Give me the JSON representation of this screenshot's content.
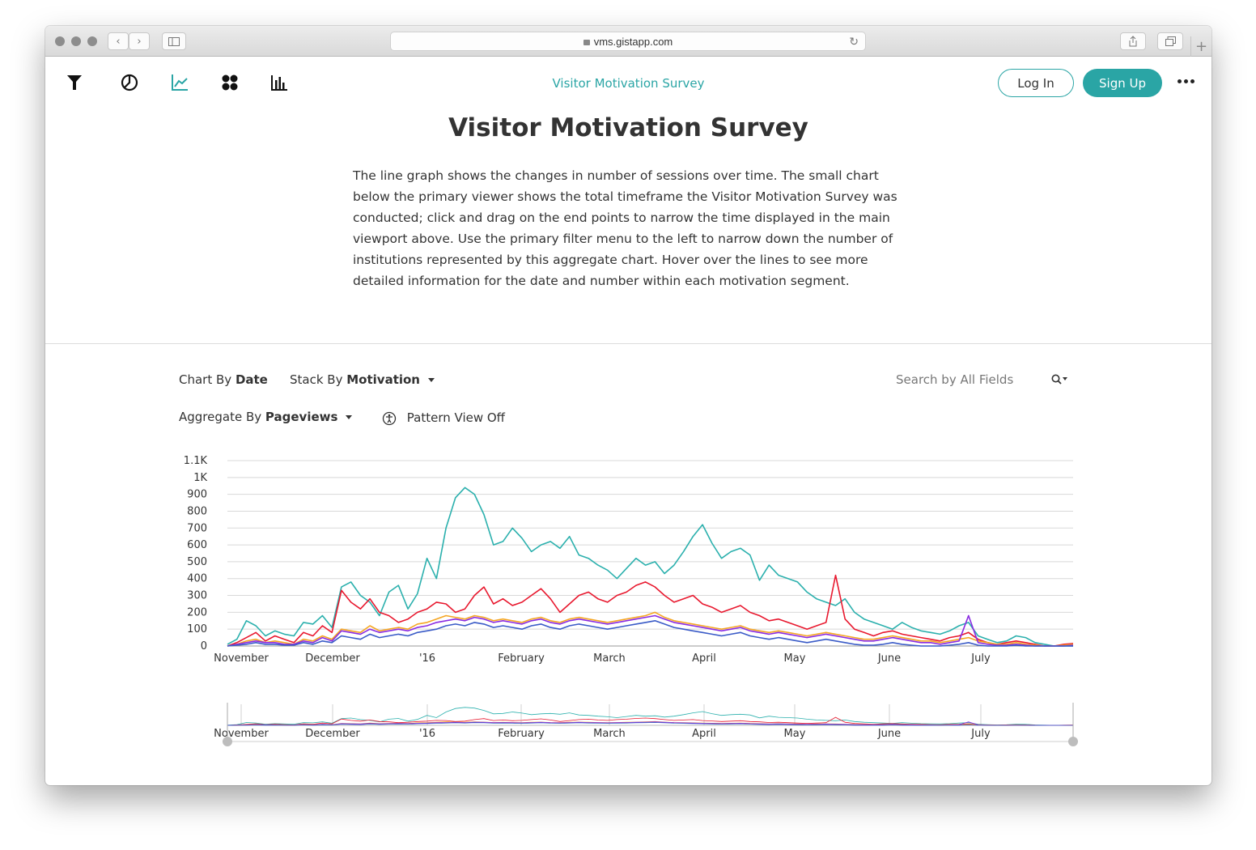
{
  "browser": {
    "url": "vms.gistapp.com"
  },
  "nav": {
    "title": "Visitor Motivation Survey",
    "login_label": "Log In",
    "signup_label": "Sign Up"
  },
  "page": {
    "heading": "Visitor Motivation Survey",
    "description": "The line graph shows the changes in number of sessions over time. The small chart below the primary viewer shows the total timeframe the Visitor Motivation Survey was conducted; click and drag on the end points to narrow the time displayed in the main viewport above. Use the primary filter menu to the left to narrow down the number of institutions represented by this aggregate chart. Hover over the lines to see more detailed information for the date and number within each motivation segment."
  },
  "controls": {
    "chart_by_label": "Chart By",
    "chart_by_value": "Date",
    "stack_by_label": "Stack By",
    "stack_by_value": "Motivation",
    "aggregate_by_label": "Aggregate By",
    "aggregate_by_value": "Pageviews",
    "pattern_view": "Pattern View Off",
    "search_placeholder": "Search by All Fields"
  },
  "colors": {
    "accent": "#2aa5a5",
    "teal": "#2bb0ad",
    "red": "#e8182e",
    "orange": "#f5a623",
    "purple": "#8a2be2",
    "blue": "#3a5bc7"
  },
  "chart_data": {
    "type": "line",
    "ylim": [
      0,
      1100
    ],
    "yticks": [
      "0",
      "100",
      "200",
      "300",
      "400",
      "500",
      "600",
      "700",
      "800",
      "900",
      "1K",
      "1.1K"
    ],
    "xticks": [
      "November",
      "December",
      "'16",
      "February",
      "March",
      "April",
      "May",
      "June",
      "July"
    ],
    "grid": true,
    "series": [
      {
        "color": "#2bb0ad",
        "values": [
          10,
          40,
          150,
          120,
          60,
          90,
          70,
          60,
          140,
          130,
          180,
          110,
          350,
          380,
          300,
          260,
          180,
          320,
          360,
          220,
          310,
          520,
          400,
          700,
          880,
          940,
          900,
          780,
          600,
          620,
          700,
          640,
          560,
          600,
          620,
          580,
          650,
          540,
          520,
          480,
          450,
          400,
          460,
          520,
          480,
          500,
          430,
          480,
          560,
          650,
          720,
          610,
          520,
          560,
          580,
          540,
          390,
          480,
          420,
          400,
          380,
          320,
          280,
          260,
          240,
          280,
          200,
          160,
          140,
          120,
          100,
          140,
          110,
          90,
          80,
          70,
          90,
          120,
          140,
          60,
          40,
          20,
          30,
          60,
          50,
          20,
          10,
          0,
          0,
          0
        ]
      },
      {
        "color": "#e8182e",
        "values": [
          0,
          20,
          50,
          80,
          30,
          60,
          40,
          20,
          80,
          60,
          120,
          80,
          330,
          260,
          220,
          280,
          200,
          180,
          140,
          160,
          200,
          220,
          260,
          250,
          200,
          220,
          300,
          350,
          250,
          280,
          240,
          260,
          300,
          340,
          280,
          200,
          250,
          300,
          320,
          280,
          260,
          300,
          320,
          360,
          380,
          350,
          300,
          260,
          280,
          300,
          250,
          230,
          200,
          220,
          240,
          200,
          180,
          150,
          160,
          140,
          120,
          100,
          120,
          140,
          420,
          160,
          100,
          80,
          60,
          80,
          90,
          70,
          60,
          50,
          40,
          30,
          50,
          60,
          80,
          40,
          20,
          10,
          20,
          30,
          20,
          10,
          0,
          0,
          10,
          15
        ]
      },
      {
        "color": "#f5a623",
        "values": [
          0,
          10,
          30,
          40,
          20,
          30,
          20,
          10,
          40,
          30,
          60,
          40,
          100,
          90,
          80,
          120,
          90,
          100,
          110,
          100,
          130,
          140,
          160,
          180,
          170,
          160,
          180,
          170,
          150,
          160,
          150,
          140,
          160,
          170,
          150,
          140,
          160,
          170,
          160,
          150,
          140,
          150,
          160,
          170,
          180,
          200,
          170,
          150,
          140,
          130,
          120,
          110,
          100,
          110,
          120,
          100,
          90,
          80,
          90,
          80,
          70,
          60,
          70,
          80,
          70,
          60,
          50,
          40,
          40,
          50,
          60,
          50,
          40,
          30,
          30,
          20,
          30,
          40,
          50,
          30,
          20,
          10,
          10,
          20,
          10,
          5,
          0,
          0,
          5,
          10
        ]
      },
      {
        "color": "#8a2be2",
        "values": [
          0,
          10,
          20,
          30,
          20,
          20,
          10,
          10,
          30,
          20,
          50,
          30,
          90,
          80,
          70,
          100,
          80,
          90,
          100,
          90,
          110,
          120,
          140,
          150,
          160,
          150,
          170,
          160,
          140,
          150,
          140,
          130,
          150,
          160,
          140,
          130,
          150,
          160,
          150,
          140,
          130,
          140,
          150,
          160,
          170,
          180,
          160,
          140,
          130,
          120,
          110,
          100,
          90,
          100,
          110,
          90,
          80,
          70,
          80,
          70,
          60,
          50,
          60,
          70,
          60,
          50,
          40,
          30,
          30,
          40,
          50,
          40,
          30,
          20,
          20,
          10,
          20,
          30,
          180,
          20,
          10,
          5,
          5,
          10,
          5,
          0,
          0,
          0,
          0,
          5
        ]
      },
      {
        "color": "#3a5bc7",
        "values": [
          0,
          5,
          10,
          20,
          10,
          10,
          5,
          5,
          20,
          10,
          30,
          20,
          60,
          50,
          40,
          70,
          50,
          60,
          70,
          60,
          80,
          90,
          100,
          120,
          130,
          120,
          140,
          130,
          110,
          120,
          110,
          100,
          120,
          130,
          110,
          100,
          120,
          130,
          120,
          110,
          100,
          110,
          120,
          130,
          140,
          150,
          130,
          110,
          100,
          90,
          80,
          70,
          60,
          70,
          80,
          60,
          50,
          40,
          50,
          40,
          30,
          20,
          30,
          40,
          30,
          20,
          10,
          5,
          5,
          10,
          20,
          10,
          5,
          0,
          0,
          0,
          5,
          10,
          20,
          5,
          0,
          0,
          0,
          5,
          0,
          0,
          0,
          0,
          0,
          0
        ]
      }
    ]
  }
}
